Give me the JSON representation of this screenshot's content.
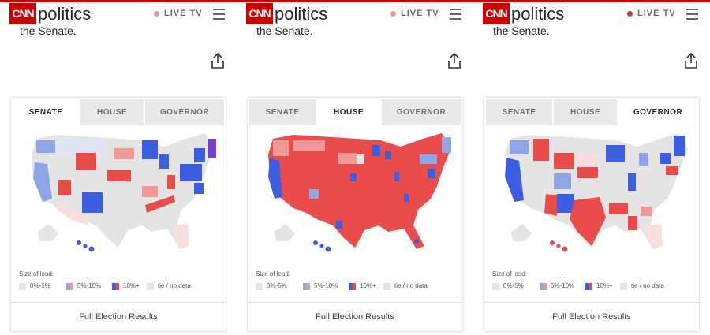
{
  "header": {
    "logo": "CNN",
    "section": "politics",
    "live": "LIVE TV"
  },
  "intro_text": "the Senate.",
  "tabs": [
    "SENATE",
    "HOUSE",
    "GOVERNOR"
  ],
  "legend": {
    "title": "Size of lead:",
    "items": [
      "0%-5%",
      "5%-10%",
      "10%+",
      "tie / no data"
    ]
  },
  "footer_link": "Full Election Results",
  "colors": {
    "cnn_red": "#cc0000",
    "dem_light": "#dfe5f7",
    "dem_mid": "#8ea6e6",
    "dem_strong": "#3b5fe0",
    "rep_light": "#f9dede",
    "rep_mid": "#f09a98",
    "rep_strong": "#ea4b4b",
    "tie": "#e4e4e4",
    "independent": "#7b3fc4"
  },
  "panels": [
    {
      "active_tab": "SENATE"
    },
    {
      "active_tab": "HOUSE"
    },
    {
      "active_tab": "GOVERNOR"
    }
  ]
}
